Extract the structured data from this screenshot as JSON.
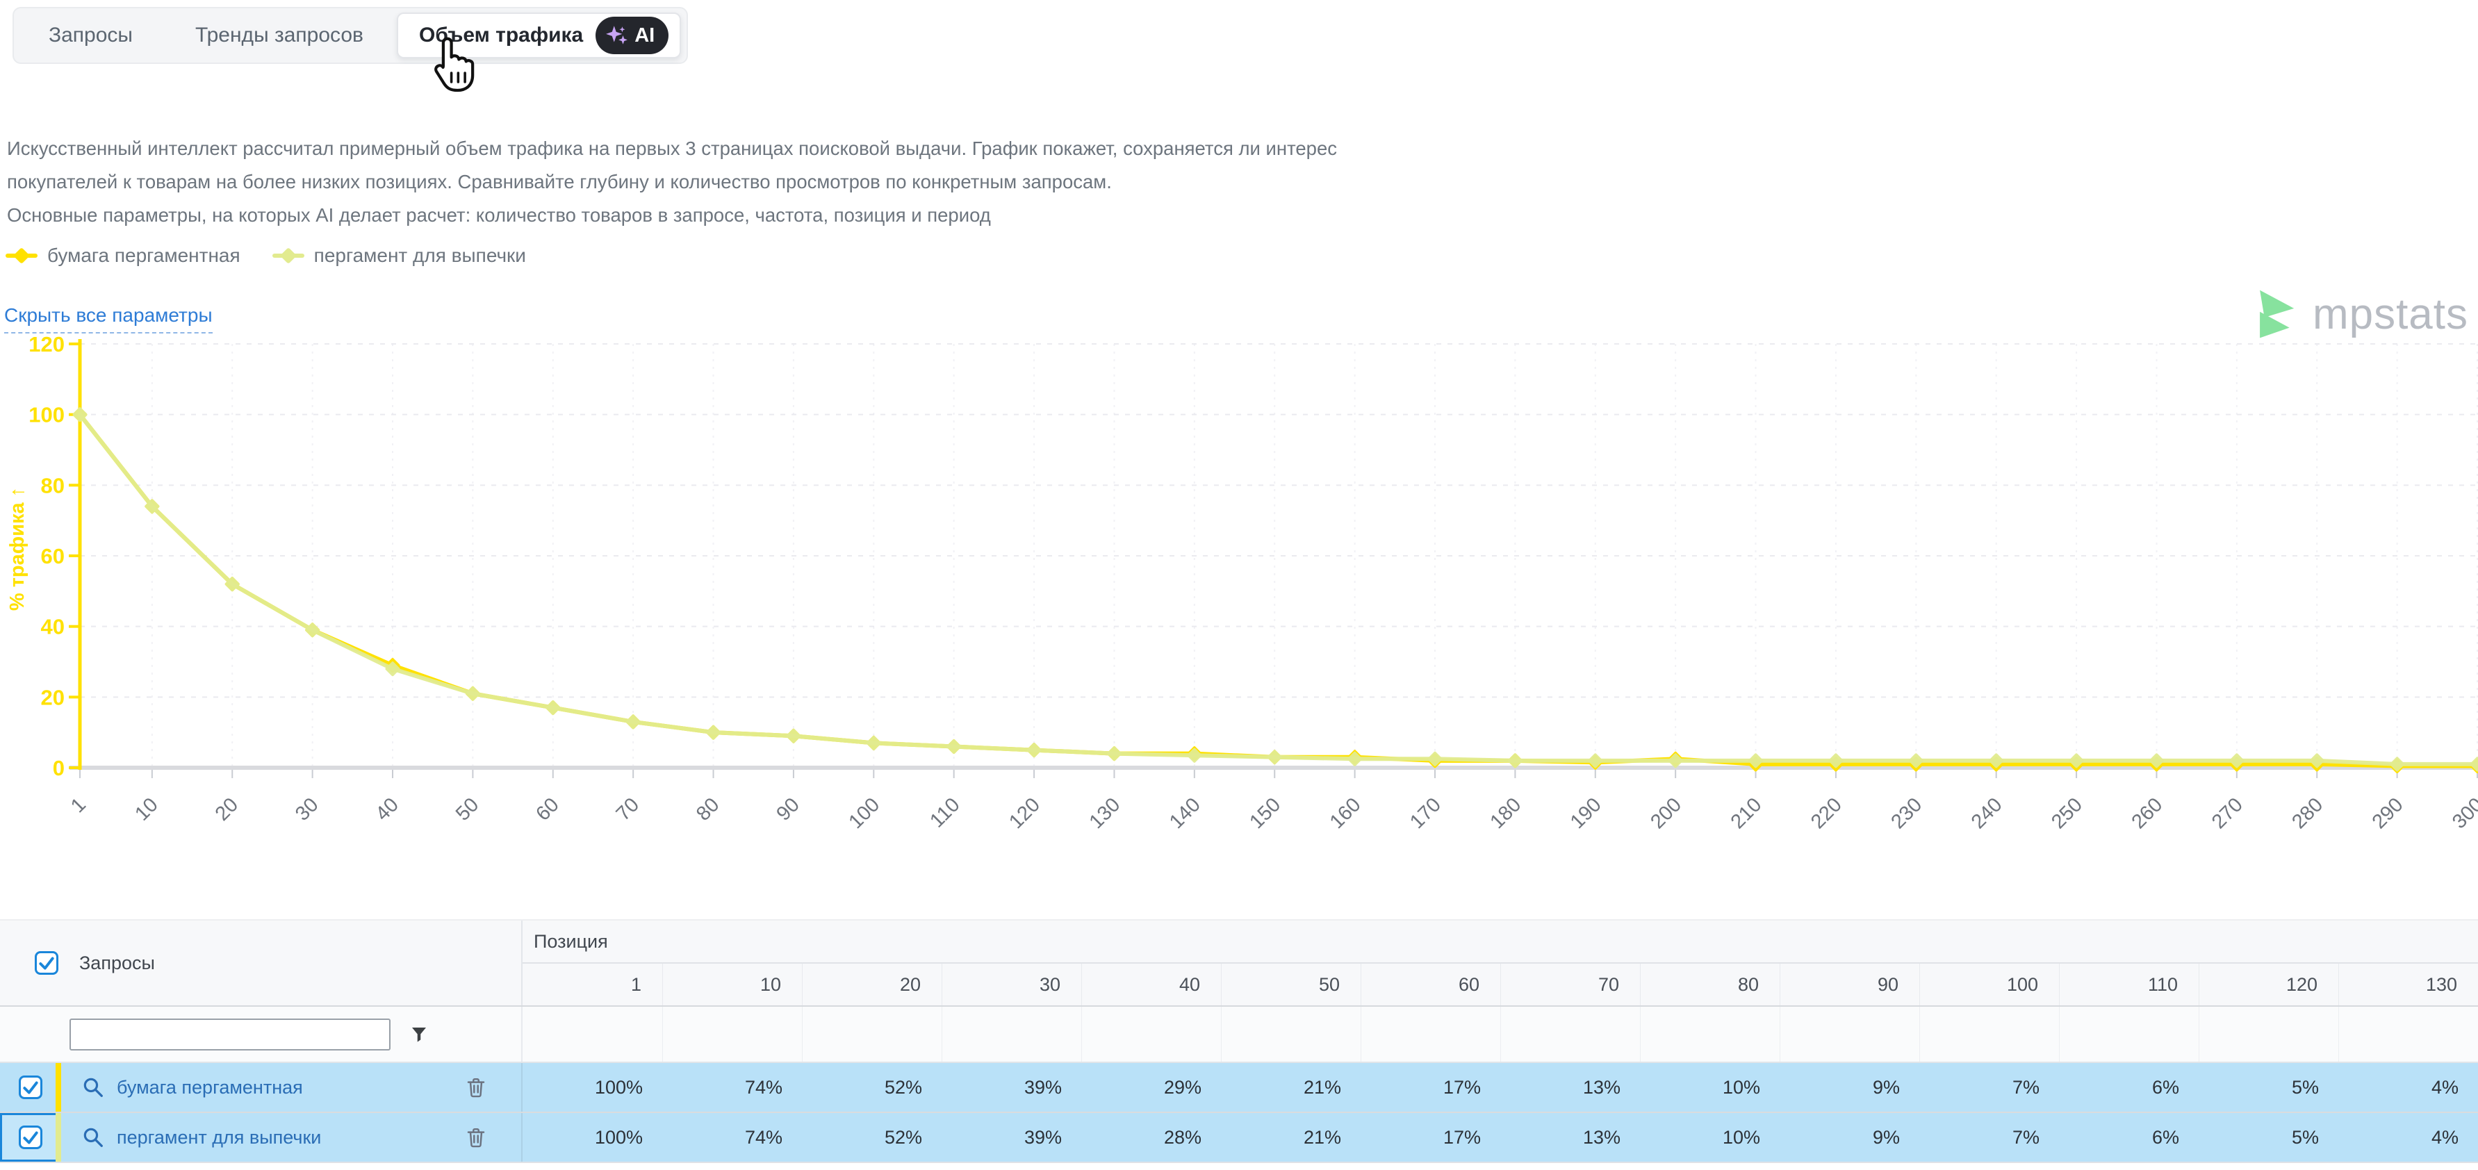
{
  "tabs": {
    "items": [
      {
        "label": "Запросы",
        "active": false
      },
      {
        "label": "Тренды запросов",
        "active": false
      },
      {
        "label": "Объем трафика",
        "active": true,
        "badge": "AI"
      }
    ]
  },
  "description": {
    "lines": [
      "Искусственный интеллект рассчитал примерный объем трафика на первых 3 страницах поисковой выдачи. График покажет, сохраняется ли интерес",
      "покупателей к товарам на более низких позициях. Сравнивайте глубину и количество просмотров по конкретным запросам.",
      "Основные параметры, на которых AI делает расчет: количество товаров в запросе, частота, позиция и период"
    ]
  },
  "controls": {
    "hide_params_label": "Скрыть все параметры"
  },
  "logo": {
    "text": "mpstats",
    "icon_color": "#87e29e",
    "text_color": "#b7bbc2"
  },
  "chart_data": {
    "type": "line",
    "title": "",
    "xlabel": "",
    "ylabel": "% трафика ↑",
    "x": [
      1,
      10,
      20,
      30,
      40,
      50,
      60,
      70,
      80,
      90,
      100,
      110,
      120,
      130,
      140,
      150,
      160,
      170,
      180,
      190,
      200,
      210,
      220,
      230,
      240,
      250,
      260,
      270,
      280,
      290,
      300
    ],
    "series": [
      {
        "name": "бумага пергаментная",
        "color": "#FFE100",
        "values": [
          100,
          74,
          52,
          39,
          29,
          21,
          17,
          13,
          10,
          9,
          7,
          6,
          5,
          4,
          4,
          3,
          3,
          2,
          2,
          1.5,
          2.5,
          1,
          1,
          1,
          1,
          1,
          1,
          1,
          1,
          0.5,
          0.5
        ]
      },
      {
        "name": "пергамент для выпечки",
        "color": "#E2EB8F",
        "values": [
          100,
          74,
          52,
          39,
          28,
          21,
          17,
          13,
          10,
          9,
          7,
          6,
          5,
          4,
          3.5,
          3,
          2.5,
          2.5,
          2,
          2,
          2,
          2,
          2,
          2,
          2,
          2,
          2,
          2,
          2,
          1,
          1
        ]
      }
    ],
    "ylim": [
      0,
      120
    ],
    "yticks": [
      0,
      20,
      40,
      60,
      80,
      100,
      120
    ],
    "axis_color": "#FFE100",
    "grid": true,
    "legend_position": "top-left"
  },
  "table": {
    "queries_header": "Запросы",
    "group_header": "Позиция",
    "select_all_checked": true,
    "filter_input_value": "",
    "position_columns": [
      "1",
      "10",
      "20",
      "30",
      "40",
      "50",
      "60",
      "70",
      "80",
      "90",
      "100",
      "110",
      "120",
      "130"
    ],
    "rows": [
      {
        "checked": true,
        "query": "бумага пергаментная",
        "accent_color": "#FFE100",
        "cell_selected": false,
        "values": [
          "100%",
          "74%",
          "52%",
          "39%",
          "29%",
          "21%",
          "17%",
          "13%",
          "10%",
          "9%",
          "7%",
          "6%",
          "5%",
          "4%"
        ]
      },
      {
        "checked": true,
        "query": "пергамент для выпечки",
        "accent_color": "#E2EB8F",
        "cell_selected": true,
        "values": [
          "100%",
          "74%",
          "52%",
          "39%",
          "28%",
          "21%",
          "17%",
          "13%",
          "10%",
          "9%",
          "7%",
          "6%",
          "5%",
          "4%"
        ]
      }
    ]
  }
}
